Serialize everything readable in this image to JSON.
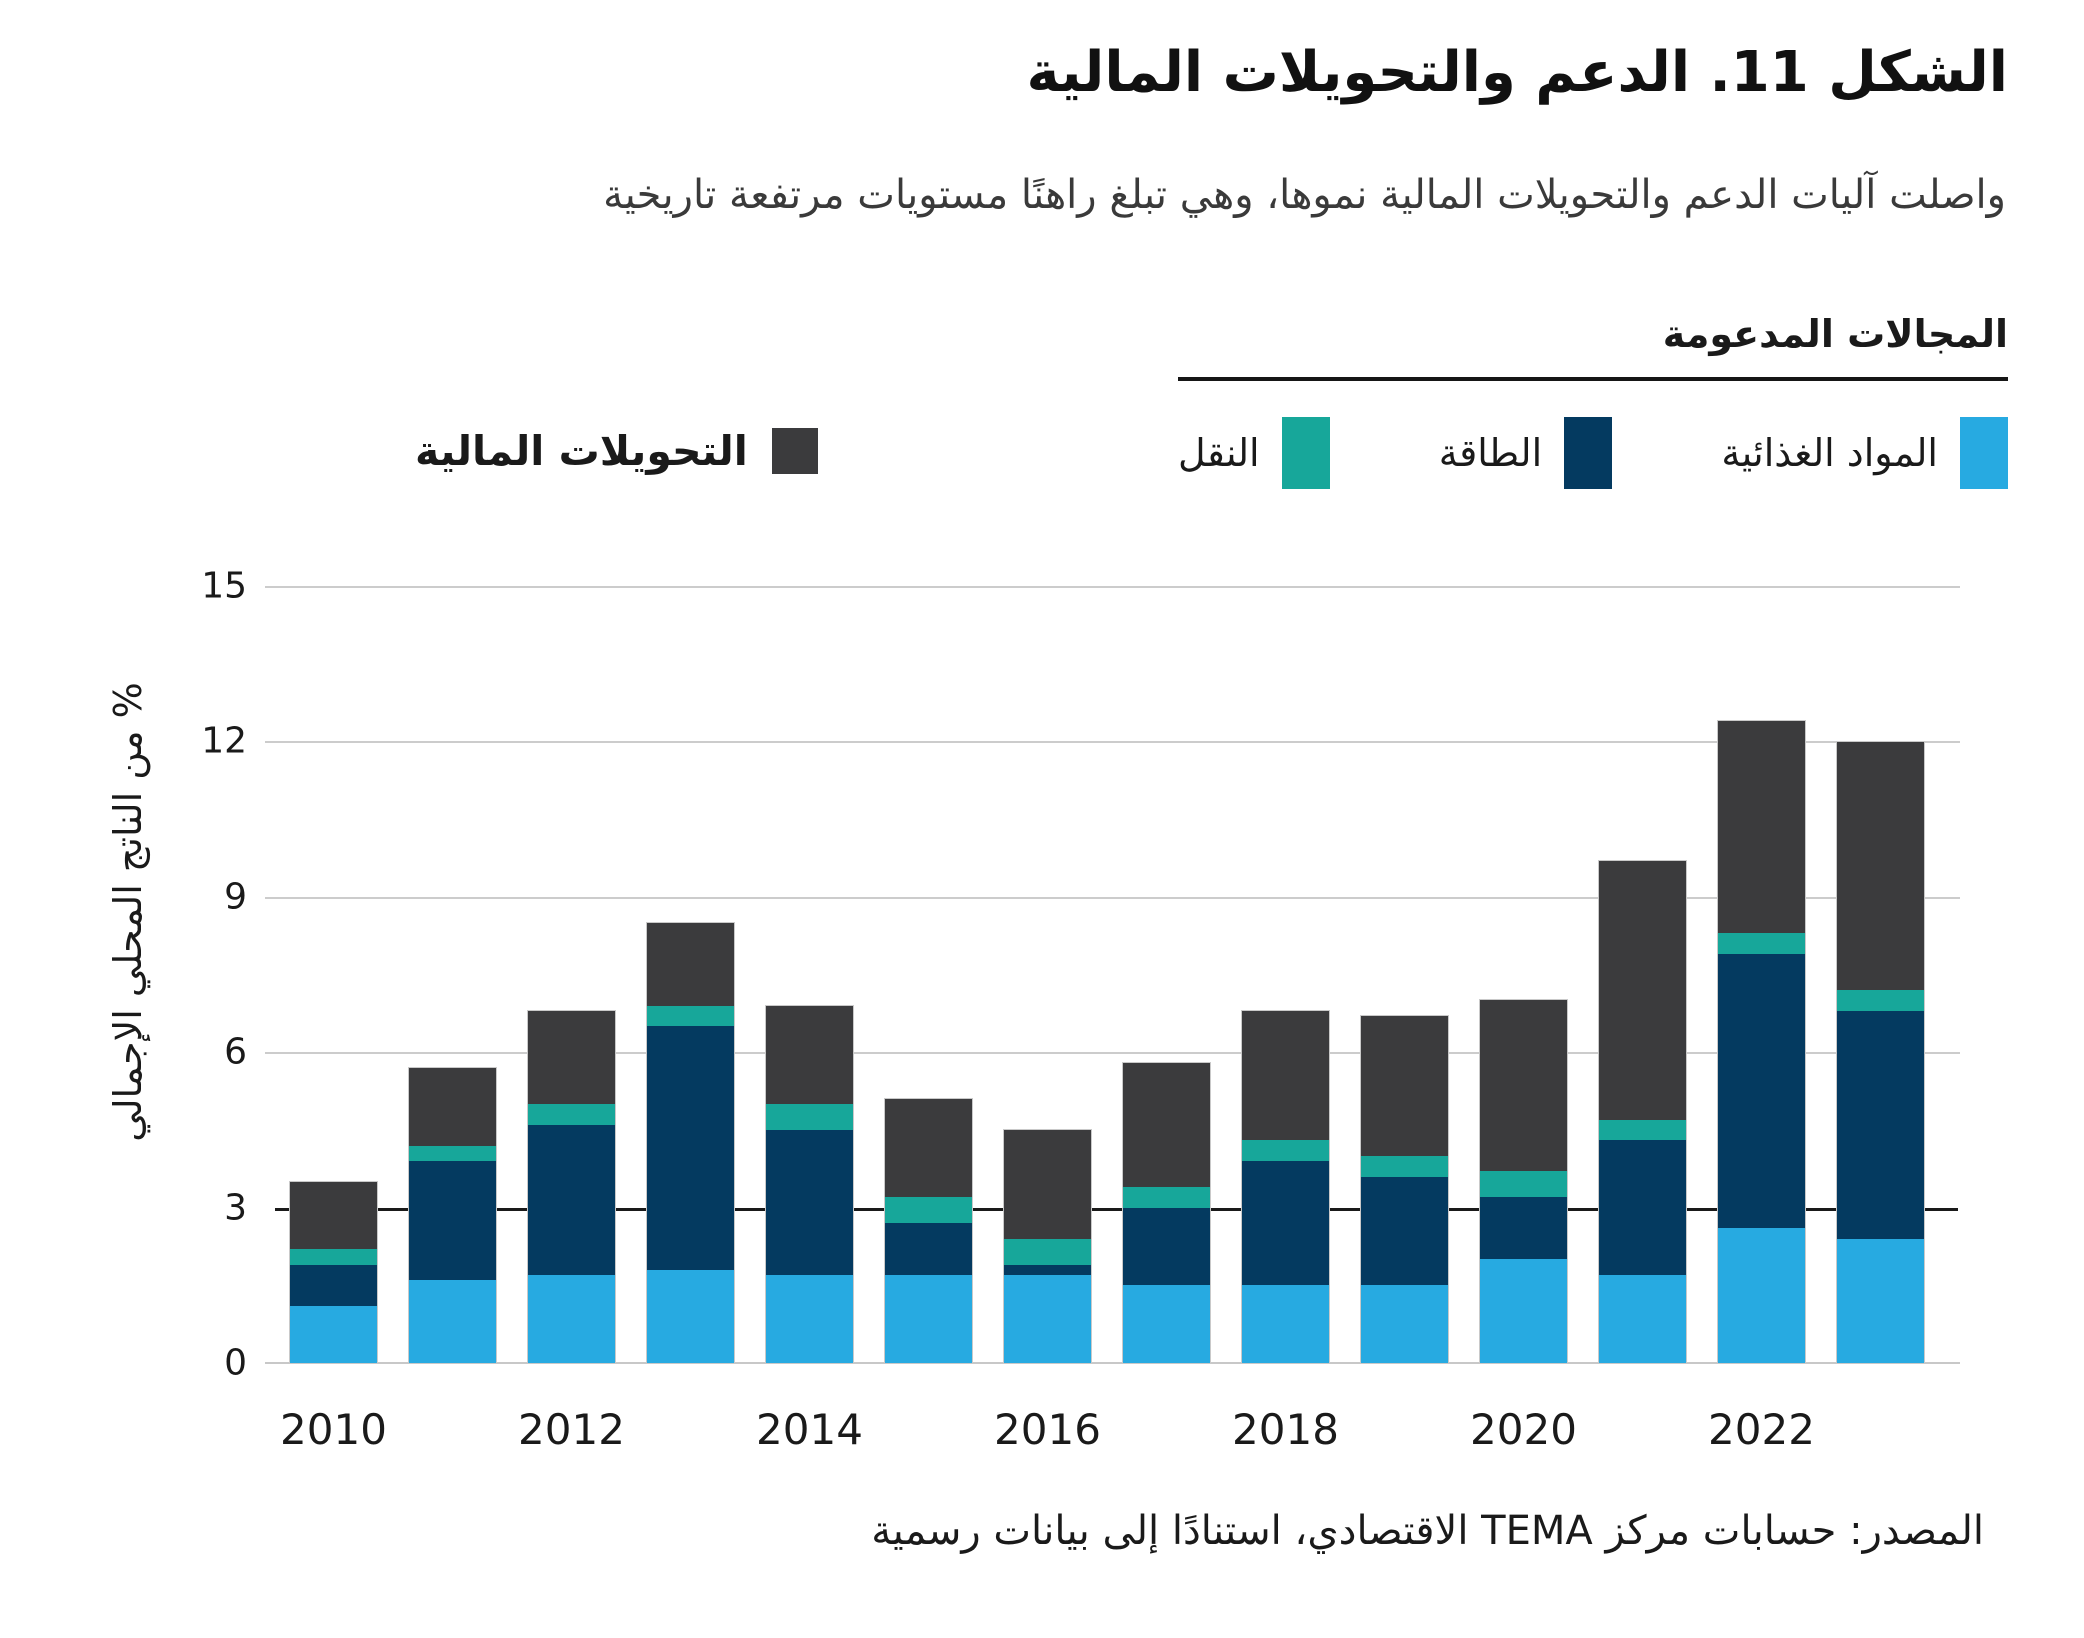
{
  "title": "الشكل 11. الدعم والتحويلات المالية",
  "subtitle": "واصلت آليات الدعم والتحويلات المالية نموها، وهي تبلغ راهنًا مستويات مرتفعة تاريخية",
  "legend": {
    "areas_header": "المجالات المدعومة",
    "transfers_label": "التحويلات المالية"
  },
  "source": "المصدر: حسابات مركز TEMA الاقتصادي، استنادًا إلى بيانات رسمية",
  "colors": {
    "food": "#27AAE1",
    "energy": "#043A60",
    "transport": "#17A79A",
    "transfers": "#3B3B3D",
    "gridline": "#CCCCCC",
    "reference_line": "#1A1A1A"
  },
  "chart_data": {
    "type": "bar",
    "stacked": true,
    "title": "الشكل 11. الدعم والتحويلات المالية",
    "ylabel": "% من الناتج المحلي الإجمالي",
    "xlabel": "",
    "ylim": [
      0,
      15
    ],
    "yticks": [
      0,
      3,
      6,
      9,
      12,
      15
    ],
    "reference_line_y": 3,
    "grid": "horizontal",
    "legend_position": "top",
    "categories": [
      "2010",
      "2011",
      "2012",
      "2013",
      "2014",
      "2015",
      "2016",
      "2017",
      "2018",
      "2019",
      "2020",
      "2021",
      "2022",
      "2023"
    ],
    "xtick_labels": [
      "2010",
      "2012",
      "2014",
      "2016",
      "2018",
      "2020",
      "2022"
    ],
    "series": [
      {
        "name": "المواد الغذائية",
        "color": "#27AAE1",
        "values": [
          1.1,
          1.6,
          1.7,
          1.8,
          1.7,
          1.7,
          1.7,
          1.5,
          1.5,
          1.5,
          2.0,
          1.7,
          2.6,
          2.4
        ]
      },
      {
        "name": "الطاقة",
        "color": "#043A60",
        "values": [
          0.8,
          2.3,
          2.9,
          4.7,
          2.8,
          1.0,
          0.2,
          1.5,
          2.4,
          2.1,
          1.2,
          2.6,
          5.3,
          4.4
        ]
      },
      {
        "name": "النقل",
        "color": "#17A79A",
        "values": [
          0.3,
          0.3,
          0.4,
          0.4,
          0.5,
          0.5,
          0.5,
          0.4,
          0.4,
          0.4,
          0.5,
          0.4,
          0.4,
          0.4
        ]
      },
      {
        "name": "التحويلات المالية",
        "color": "#3B3B3D",
        "values": [
          1.3,
          1.5,
          1.8,
          1.6,
          1.9,
          1.9,
          2.1,
          2.4,
          2.5,
          2.7,
          3.3,
          5.0,
          4.1,
          4.8
        ]
      }
    ]
  }
}
